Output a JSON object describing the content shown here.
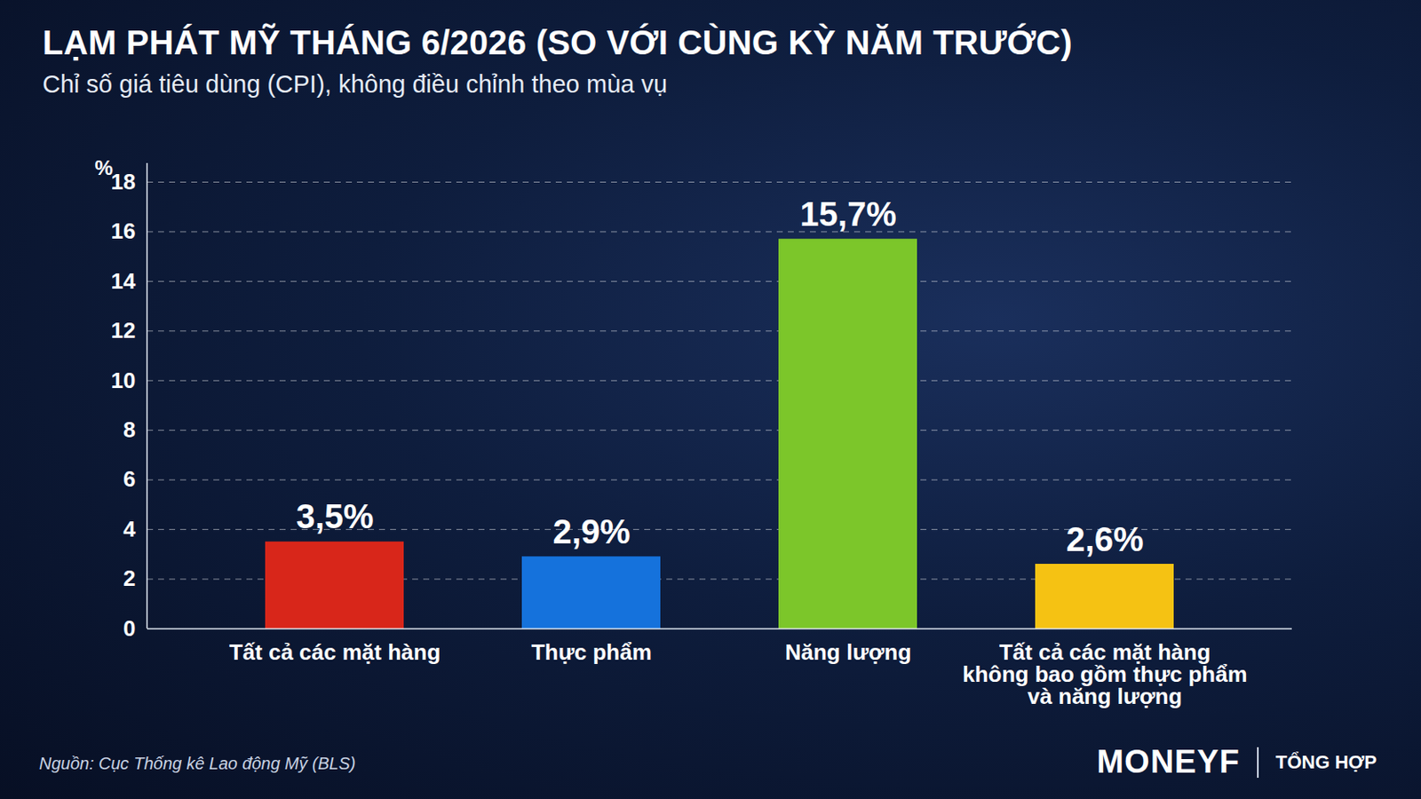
{
  "chart_data": {
    "type": "bar",
    "title": "LẠM PHÁT MỸ THÁNG 6/2026 (SO VỚI CÙNG KỲ NĂM TRƯỚC)",
    "subtitle": "Chỉ số giá tiêu dùng (CPI), không điều chỉnh theo mùa vụ",
    "y_label": "%",
    "categories": [
      "Tất cả các mặt hàng",
      "Thực phẩm",
      "Năng lượng",
      "Tất cả các mặt hàng không bao gồm thực phẩm và năng lượng"
    ],
    "values": [
      3.5,
      2.9,
      15.7,
      2.6
    ],
    "value_labels": [
      "3,5%",
      "2,9%",
      "15,7%",
      "2,6%"
    ],
    "colors": [
      "#d8261a",
      "#1572dc",
      "#7cc62a",
      "#f5c213"
    ],
    "ylim": [
      0,
      18
    ],
    "yticks": [
      0,
      2,
      4,
      6,
      8,
      10,
      12,
      14,
      16,
      18
    ],
    "grid": true,
    "data_labels": true,
    "source": "Nguồn: Cục Thống kê Lao động Mỹ (BLS)",
    "brand": "MONEYF",
    "brand_note": "TỔNG HỢP"
  }
}
